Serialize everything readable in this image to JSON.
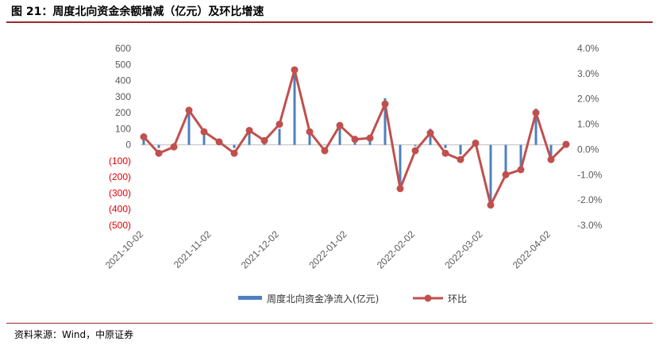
{
  "header": {
    "title": "图 21：周度北向资金余额增减（亿元）及环比增速"
  },
  "footer": {
    "source": "资料来源：Wind，中原证券"
  },
  "colors": {
    "bar": "#4f81bd",
    "line": "#c0504d",
    "negative_label": "#e00000",
    "rule": "#9b2a2a"
  },
  "chart_data": {
    "type": "bar+line",
    "x_tick_labels": [
      "2021-10-02",
      "2021-11-02",
      "2021-12-02",
      "2022-01-02",
      "2022-02-02",
      "2022-03-02",
      "2022-04-02"
    ],
    "x_tick_positions": [
      0,
      4.5,
      9,
      13.5,
      18,
      22.5,
      27
    ],
    "left_axis": {
      "ylim": [
        -500,
        600
      ],
      "ticks": [
        600,
        500,
        400,
        300,
        200,
        100,
        0,
        -100,
        -200,
        -300,
        -400,
        -500
      ],
      "tick_labels": [
        "600",
        "500",
        "400",
        "300",
        "200",
        "100",
        "0",
        "(100)",
        "(200)",
        "(300)",
        "(400)",
        "(500)"
      ]
    },
    "right_axis": {
      "ylim": [
        -3.0,
        4.0
      ],
      "ticks": [
        4.0,
        3.0,
        2.0,
        1.0,
        0.0,
        -1.0,
        -2.0,
        -3.0
      ],
      "tick_labels": [
        "4.0%",
        "3.0%",
        "2.0%",
        "1.0%",
        "0.0%",
        "-1.0%",
        "-2.0%",
        "-3.0%"
      ]
    },
    "series": [
      {
        "name": "周度北向资金净流入(亿元)",
        "type": "bar",
        "axis": "left",
        "values": [
          40,
          -20,
          10,
          210,
          70,
          30,
          -20,
          75,
          40,
          100,
          450,
          75,
          0,
          110,
          40,
          60,
          290,
          -280,
          -8,
          100,
          -20,
          -60,
          30,
          -380,
          -200,
          -170,
          225,
          -80,
          20
        ]
      },
      {
        "name": "环比",
        "type": "line",
        "axis": "right",
        "values": [
          0.5,
          -0.15,
          0.1,
          1.55,
          0.7,
          0.3,
          -0.15,
          0.75,
          0.35,
          1.0,
          3.15,
          0.7,
          -0.05,
          0.95,
          0.4,
          0.45,
          1.8,
          -1.55,
          -0.05,
          0.65,
          -0.15,
          -0.4,
          0.25,
          -2.2,
          -1.0,
          -0.8,
          1.45,
          -0.4,
          0.2
        ]
      }
    ],
    "legend_position": "bottom",
    "grid": false
  }
}
